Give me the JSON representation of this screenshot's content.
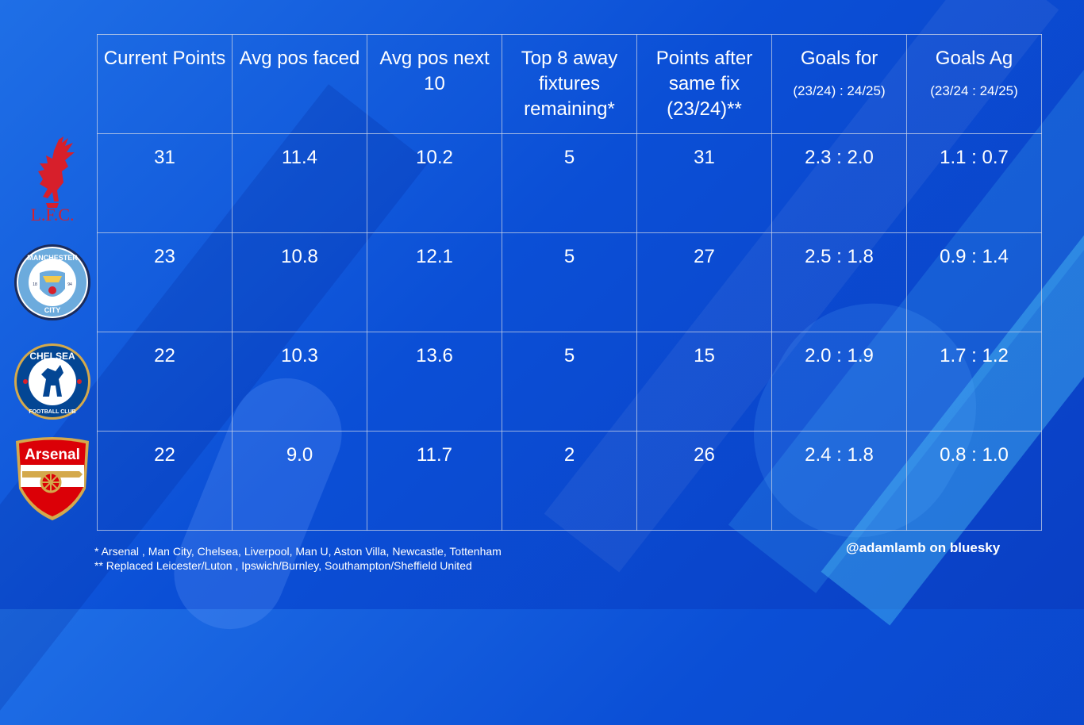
{
  "header": {
    "current_points": "Current Points",
    "avg_pos_faced": "Avg pos faced",
    "avg_pos_next10": "Avg pos next 10",
    "top8_away": "Top 8 away fixtures remaining*",
    "points_after": "Points after same fix (23/24)**",
    "goals_for": "Goals for",
    "goals_for_sub": "(23/24) : 24/25)",
    "goals_ag": "Goals Ag",
    "goals_ag_sub": "(23/24 : 24/25)"
  },
  "rows": [
    {
      "team": "Liverpool",
      "logo_icon": "liverbird-icon",
      "color": "#d71f2b",
      "cells": [
        "31",
        "11.4",
        "10.2",
        "5",
        "31",
        "2.3 : 2.0",
        "1.1 : 0.7"
      ]
    },
    {
      "team": "Manchester City",
      "logo_icon": "man-city-crest-icon",
      "color": "#6cabdd",
      "cells": [
        "23",
        "10.8",
        "12.1",
        "5",
        "27",
        "2.5 : 1.8",
        "0.9 : 1.4"
      ]
    },
    {
      "team": "Chelsea",
      "logo_icon": "chelsea-crest-icon",
      "color": "#034694",
      "cells": [
        "22",
        "10.3",
        "13.6",
        "5",
        "15",
        "2.0 : 1.9",
        "1.7 : 1.2"
      ]
    },
    {
      "team": "Arsenal",
      "logo_icon": "arsenal-crest-icon",
      "color": "#db0007",
      "cells": [
        "22",
        "9.0",
        "11.7",
        "2",
        "26",
        "2.4 : 1.8",
        "0.8 : 1.0"
      ]
    }
  ],
  "logos": {
    "liverpool_text": "L.F.C.",
    "mancity_top": "MANCHESTER",
    "mancity_bottom": "CITY",
    "mancity_left_year": "18",
    "mancity_right_year": "94",
    "chelsea_top": "CHELSEA",
    "chelsea_bottom": "FOOTBALL CLUB",
    "arsenal_text": "Arsenal"
  },
  "footnotes": {
    "line1": "* Arsenal , Man City, Chelsea, Liverpool, Man U, Aston Villa, Newcastle, Tottenham",
    "line2": "** Replaced Leicester/Luton , Ipswich/Burnley, Southampton/Sheffield United"
  },
  "credit": "@adamlamb on bluesky"
}
